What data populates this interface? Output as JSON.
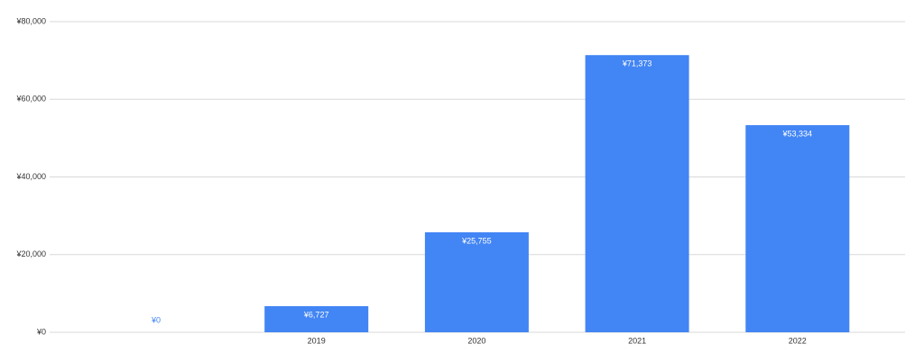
{
  "chart_data": {
    "type": "bar",
    "categories": [
      null,
      "2019",
      "2020",
      "2021",
      "2022"
    ],
    "values": [
      0,
      6727,
      25755,
      71373,
      53334
    ],
    "value_labels": [
      "¥0",
      "¥6,727",
      "¥25,755",
      "¥71,373",
      "¥53,334"
    ],
    "color": "#4285f4",
    "ylim": [
      0,
      80000
    ],
    "yticks": [
      {
        "value": 0,
        "label": "¥0"
      },
      {
        "value": 20000,
        "label": "¥20,000"
      },
      {
        "value": 40000,
        "label": "¥40,000"
      },
      {
        "value": 60000,
        "label": "¥60,000"
      },
      {
        "value": 80000,
        "label": "¥80,000"
      }
    ],
    "grid": true
  }
}
